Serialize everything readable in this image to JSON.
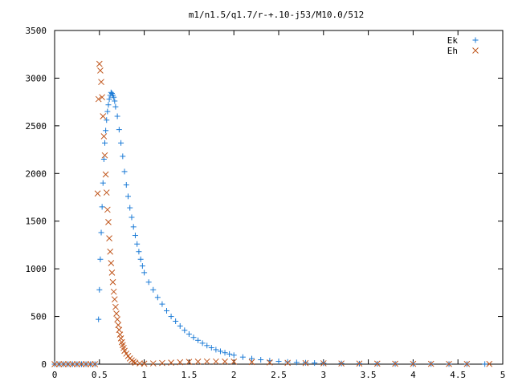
{
  "chart_data": {
    "type": "scatter",
    "title": "m1/n1.5/q1.7/r-+.10-j53/M10.0/512",
    "xlabel": "",
    "ylabel": "",
    "xlim": [
      0,
      5
    ],
    "ylim": [
      0,
      3500
    ],
    "x_ticks": [
      "0",
      "0.5",
      "1",
      "1.5",
      "2",
      "2.5",
      "3",
      "3.5",
      "4",
      "4.5",
      "5"
    ],
    "y_ticks": [
      "0",
      "500",
      "1000",
      "1500",
      "2000",
      "2500",
      "3000",
      "3500"
    ],
    "grid": false,
    "legend_position": "top-right",
    "series": [
      {
        "name": "Ek",
        "color": "#1a7ad6",
        "marker": "plus",
        "points": [
          [
            0.0,
            0
          ],
          [
            0.05,
            0
          ],
          [
            0.1,
            0
          ],
          [
            0.15,
            0
          ],
          [
            0.2,
            0
          ],
          [
            0.25,
            0
          ],
          [
            0.3,
            0
          ],
          [
            0.35,
            0
          ],
          [
            0.4,
            0
          ],
          [
            0.45,
            0
          ],
          [
            0.49,
            470
          ],
          [
            0.5,
            780
          ],
          [
            0.51,
            1100
          ],
          [
            0.52,
            1380
          ],
          [
            0.53,
            1650
          ],
          [
            0.54,
            1900
          ],
          [
            0.55,
            2150
          ],
          [
            0.56,
            2320
          ],
          [
            0.57,
            2450
          ],
          [
            0.58,
            2560
          ],
          [
            0.59,
            2650
          ],
          [
            0.6,
            2720
          ],
          [
            0.61,
            2780
          ],
          [
            0.62,
            2820
          ],
          [
            0.63,
            2850
          ],
          [
            0.64,
            2840
          ],
          [
            0.65,
            2820
          ],
          [
            0.66,
            2800
          ],
          [
            0.67,
            2760
          ],
          [
            0.68,
            2700
          ],
          [
            0.7,
            2600
          ],
          [
            0.72,
            2460
          ],
          [
            0.74,
            2320
          ],
          [
            0.76,
            2180
          ],
          [
            0.78,
            2020
          ],
          [
            0.8,
            1880
          ],
          [
            0.82,
            1760
          ],
          [
            0.84,
            1640
          ],
          [
            0.86,
            1540
          ],
          [
            0.88,
            1440
          ],
          [
            0.9,
            1350
          ],
          [
            0.92,
            1260
          ],
          [
            0.94,
            1180
          ],
          [
            0.96,
            1100
          ],
          [
            0.98,
            1030
          ],
          [
            1.0,
            960
          ],
          [
            1.05,
            860
          ],
          [
            1.1,
            780
          ],
          [
            1.15,
            700
          ],
          [
            1.2,
            630
          ],
          [
            1.25,
            560
          ],
          [
            1.3,
            500
          ],
          [
            1.35,
            450
          ],
          [
            1.4,
            400
          ],
          [
            1.45,
            355
          ],
          [
            1.5,
            315
          ],
          [
            1.55,
            280
          ],
          [
            1.6,
            250
          ],
          [
            1.65,
            220
          ],
          [
            1.7,
            195
          ],
          [
            1.75,
            172
          ],
          [
            1.8,
            152
          ],
          [
            1.85,
            135
          ],
          [
            1.9,
            120
          ],
          [
            1.95,
            106
          ],
          [
            2.0,
            94
          ],
          [
            2.1,
            74
          ],
          [
            2.2,
            58
          ],
          [
            2.3,
            46
          ],
          [
            2.4,
            36
          ],
          [
            2.5,
            29
          ],
          [
            2.6,
            23
          ],
          [
            2.7,
            18
          ],
          [
            2.8,
            15
          ],
          [
            2.9,
            12
          ],
          [
            3.0,
            10
          ],
          [
            3.2,
            7
          ],
          [
            3.4,
            5
          ],
          [
            3.6,
            4
          ],
          [
            3.8,
            3
          ],
          [
            4.0,
            2
          ],
          [
            4.2,
            2
          ],
          [
            4.4,
            1
          ],
          [
            4.6,
            1
          ],
          [
            4.8,
            1
          ]
        ]
      },
      {
        "name": "Eh",
        "color": "#c0561c",
        "marker": "cross",
        "points": [
          [
            0.0,
            0
          ],
          [
            0.05,
            0
          ],
          [
            0.1,
            0
          ],
          [
            0.15,
            0
          ],
          [
            0.2,
            0
          ],
          [
            0.25,
            0
          ],
          [
            0.3,
            0
          ],
          [
            0.35,
            0
          ],
          [
            0.4,
            0
          ],
          [
            0.45,
            0
          ],
          [
            0.48,
            1790
          ],
          [
            0.49,
            2780
          ],
          [
            0.5,
            3150
          ],
          [
            0.51,
            3080
          ],
          [
            0.52,
            2960
          ],
          [
            0.53,
            2800
          ],
          [
            0.54,
            2600
          ],
          [
            0.55,
            2390
          ],
          [
            0.56,
            2190
          ],
          [
            0.57,
            1990
          ],
          [
            0.58,
            1800
          ],
          [
            0.59,
            1620
          ],
          [
            0.6,
            1490
          ],
          [
            0.61,
            1320
          ],
          [
            0.62,
            1180
          ],
          [
            0.63,
            1060
          ],
          [
            0.64,
            960
          ],
          [
            0.65,
            860
          ],
          [
            0.66,
            760
          ],
          [
            0.67,
            680
          ],
          [
            0.68,
            600
          ],
          [
            0.69,
            530
          ],
          [
            0.7,
            470
          ],
          [
            0.71,
            410
          ],
          [
            0.72,
            360
          ],
          [
            0.73,
            310
          ],
          [
            0.74,
            270
          ],
          [
            0.75,
            230
          ],
          [
            0.76,
            200
          ],
          [
            0.77,
            170
          ],
          [
            0.78,
            140
          ],
          [
            0.8,
            110
          ],
          [
            0.82,
            85
          ],
          [
            0.84,
            60
          ],
          [
            0.86,
            40
          ],
          [
            0.88,
            25
          ],
          [
            0.9,
            15
          ],
          [
            0.95,
            8
          ],
          [
            1.0,
            5
          ],
          [
            1.1,
            8
          ],
          [
            1.2,
            12
          ],
          [
            1.3,
            16
          ],
          [
            1.4,
            20
          ],
          [
            1.5,
            24
          ],
          [
            1.6,
            26
          ],
          [
            1.7,
            28
          ],
          [
            1.8,
            28
          ],
          [
            1.9,
            27
          ],
          [
            2.0,
            26
          ],
          [
            2.2,
            22
          ],
          [
            2.4,
            18
          ],
          [
            2.6,
            14
          ],
          [
            2.8,
            11
          ],
          [
            3.0,
            9
          ],
          [
            3.2,
            7
          ],
          [
            3.4,
            6
          ],
          [
            3.6,
            5
          ],
          [
            3.8,
            4
          ],
          [
            4.0,
            3
          ],
          [
            4.2,
            3
          ],
          [
            4.4,
            2
          ],
          [
            4.6,
            2
          ],
          [
            4.85,
            2
          ]
        ]
      }
    ]
  }
}
